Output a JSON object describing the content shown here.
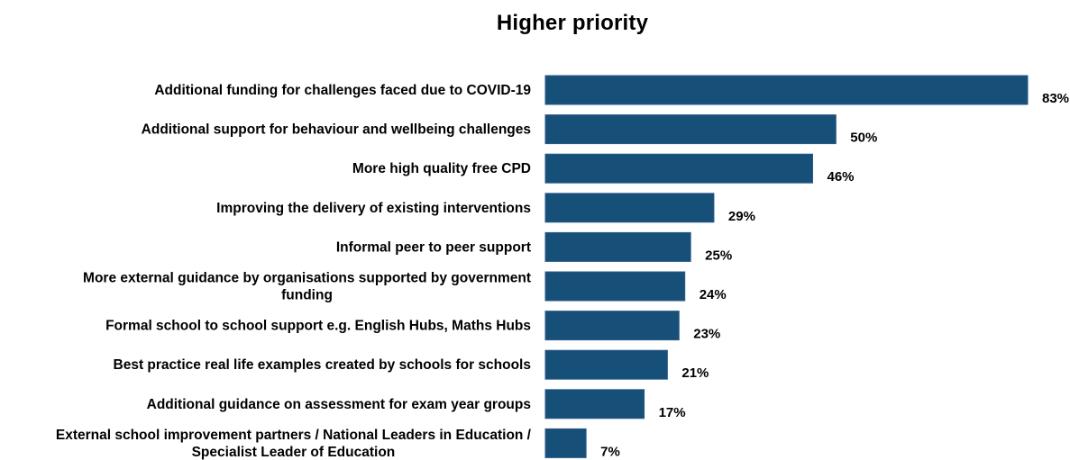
{
  "chart_data": {
    "type": "bar",
    "orientation": "horizontal",
    "title": "Higher priority",
    "categories": [
      "Additional funding for challenges faced due to COVID-19",
      "Additional support for behaviour and wellbeing challenges",
      "More high quality free CPD",
      "Improving the delivery of existing interventions",
      "Informal peer to peer support",
      "More external guidance by organisations supported by government funding",
      "Formal school to school support e.g. English Hubs, Maths Hubs",
      "Best practice real life examples created by schools for schools",
      "Additional guidance on assessment for exam year groups",
      "External school improvement partners / National Leaders in Education / Specialist Leader of Education"
    ],
    "category_lines": [
      [
        "Additional funding for challenges faced due to COVID-19"
      ],
      [
        "Additional support for behaviour and wellbeing challenges"
      ],
      [
        "More high quality free CPD"
      ],
      [
        "Improving the delivery of existing interventions"
      ],
      [
        "Informal peer to peer support"
      ],
      [
        "More external guidance by organisations supported by government",
        "funding"
      ],
      [
        "Formal school to school support e.g. English Hubs, Maths Hubs"
      ],
      [
        "Best practice real life examples created by schools for schools"
      ],
      [
        "Additional guidance on assessment for exam year groups"
      ],
      [
        "External school improvement partners / National Leaders in Education /",
        "Specialist Leader of Education"
      ]
    ],
    "values": [
      83,
      50,
      46,
      29,
      25,
      24,
      23,
      21,
      17,
      7
    ],
    "value_labels": [
      "83%",
      "50%",
      "46%",
      "29%",
      "25%",
      "24%",
      "23%",
      "21%",
      "17%",
      "7%"
    ],
    "xlim": [
      0,
      83
    ],
    "grid": false,
    "legend": "none",
    "bar_color": "#164f78"
  }
}
